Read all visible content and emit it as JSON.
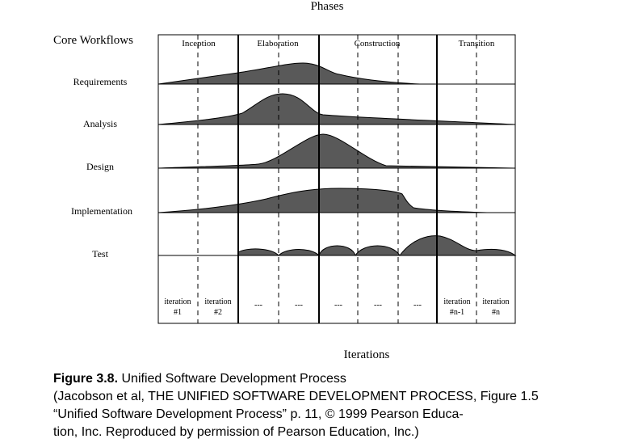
{
  "diagram": {
    "title": "Phases",
    "workflows_header": "Core Workflows",
    "x_axis_label": "Iterations",
    "phases": [
      "Inception",
      "Elaboration",
      "Construction",
      "Transition"
    ],
    "workflows": [
      "Requirements",
      "Analysis",
      "Design",
      "Implementation",
      "Test"
    ],
    "iterations": [
      {
        "line1": "iteration",
        "line2": "#1"
      },
      {
        "line1": "iteration",
        "line2": "#2"
      },
      {
        "line1": "---",
        "line2": ""
      },
      {
        "line1": "---",
        "line2": ""
      },
      {
        "line1": "---",
        "line2": ""
      },
      {
        "line1": "---",
        "line2": ""
      },
      {
        "line1": "---",
        "line2": ""
      },
      {
        "line1": "iteration",
        "line2": "#n-1"
      },
      {
        "line1": "iteration",
        "line2": "#n"
      }
    ],
    "fill_color": "#595959",
    "line_color": "#000000"
  },
  "caption": {
    "figure_label": "Figure 3.8.",
    "figure_title": "Unified Software Development Process",
    "line2": "(Jacobson et al, THE UNIFIED SOFTWARE DEVELOPMENT PROCESS, Figure 1.5",
    "line3": "“Unified Software Development Process” p. 11, © 1999 Pearson Educa-",
    "line4": "tion, Inc. Reproduced by permission of Pearson Education, Inc.)"
  }
}
